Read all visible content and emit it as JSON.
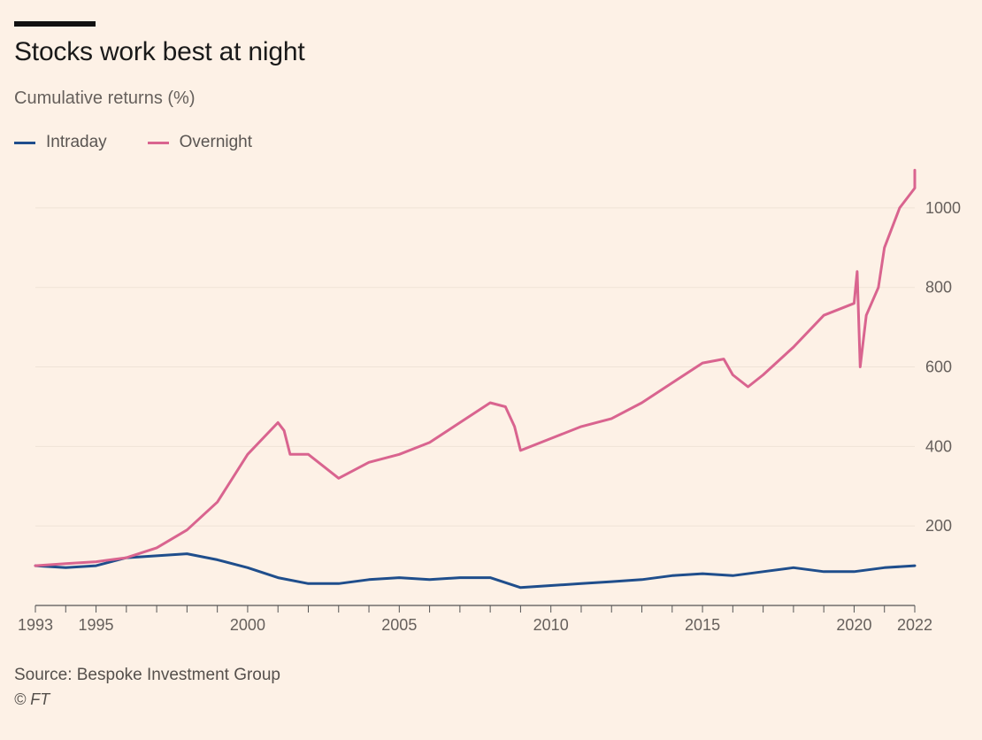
{
  "page": {
    "title": "Stocks work best at night",
    "subtitle": "Cumulative returns (%)",
    "source": "Source: Bespoke Investment Group",
    "credit": "© FT"
  },
  "legend": {
    "intraday": "Intraday",
    "overnight": "Overnight"
  },
  "colors": {
    "intraday": "#1f4e8c",
    "overnight": "#d9648f",
    "grid": "#efe3d7",
    "axis": "#555555"
  },
  "chart_data": {
    "type": "line",
    "title": "Stocks work best at night",
    "ylabel": "Cumulative returns (%)",
    "xlim": [
      1993,
      2022
    ],
    "ylim": [
      0,
      1100
    ],
    "yticks": [
      200,
      400,
      600,
      800,
      1000
    ],
    "xticks": [
      1993,
      1995,
      2000,
      2005,
      2010,
      2015,
      2020,
      2022
    ],
    "grid": true,
    "legend_position": "top-left",
    "series": [
      {
        "name": "Intraday",
        "points": [
          [
            1993,
            100
          ],
          [
            1994,
            95
          ],
          [
            1995,
            100
          ],
          [
            1996,
            120
          ],
          [
            1997,
            125
          ],
          [
            1998,
            130
          ],
          [
            1999,
            115
          ],
          [
            2000,
            95
          ],
          [
            2001,
            70
          ],
          [
            2002,
            55
          ],
          [
            2003,
            55
          ],
          [
            2004,
            65
          ],
          [
            2005,
            70
          ],
          [
            2006,
            65
          ],
          [
            2007,
            70
          ],
          [
            2008,
            70
          ],
          [
            2009,
            45
          ],
          [
            2010,
            50
          ],
          [
            2011,
            55
          ],
          [
            2012,
            60
          ],
          [
            2013,
            65
          ],
          [
            2014,
            75
          ],
          [
            2015,
            80
          ],
          [
            2016,
            75
          ],
          [
            2017,
            85
          ],
          [
            2018,
            95
          ],
          [
            2019,
            85
          ],
          [
            2020,
            85
          ],
          [
            2021,
            95
          ],
          [
            2022,
            100
          ]
        ]
      },
      {
        "name": "Overnight",
        "points": [
          [
            1993,
            100
          ],
          [
            1994,
            105
          ],
          [
            1995,
            110
          ],
          [
            1996,
            120
          ],
          [
            1997,
            145
          ],
          [
            1998,
            190
          ],
          [
            1999,
            260
          ],
          [
            2000,
            380
          ],
          [
            2001,
            460
          ],
          [
            2001.2,
            440
          ],
          [
            2001.4,
            380
          ],
          [
            2002,
            380
          ],
          [
            2003,
            320
          ],
          [
            2004,
            360
          ],
          [
            2005,
            380
          ],
          [
            2006,
            410
          ],
          [
            2007,
            460
          ],
          [
            2008,
            510
          ],
          [
            2008.5,
            500
          ],
          [
            2008.8,
            450
          ],
          [
            2009,
            390
          ],
          [
            2010,
            420
          ],
          [
            2011,
            450
          ],
          [
            2012,
            470
          ],
          [
            2013,
            510
          ],
          [
            2014,
            560
          ],
          [
            2015,
            610
          ],
          [
            2015.7,
            620
          ],
          [
            2016,
            580
          ],
          [
            2016.5,
            550
          ],
          [
            2017,
            580
          ],
          [
            2018,
            650
          ],
          [
            2019,
            730
          ],
          [
            2020,
            760
          ],
          [
            2020.1,
            840
          ],
          [
            2020.2,
            600
          ],
          [
            2020.4,
            730
          ],
          [
            2020.8,
            800
          ],
          [
            2021,
            900
          ],
          [
            2021.5,
            1000
          ],
          [
            2022,
            1050
          ],
          [
            2022,
            1095
          ]
        ]
      }
    ]
  }
}
